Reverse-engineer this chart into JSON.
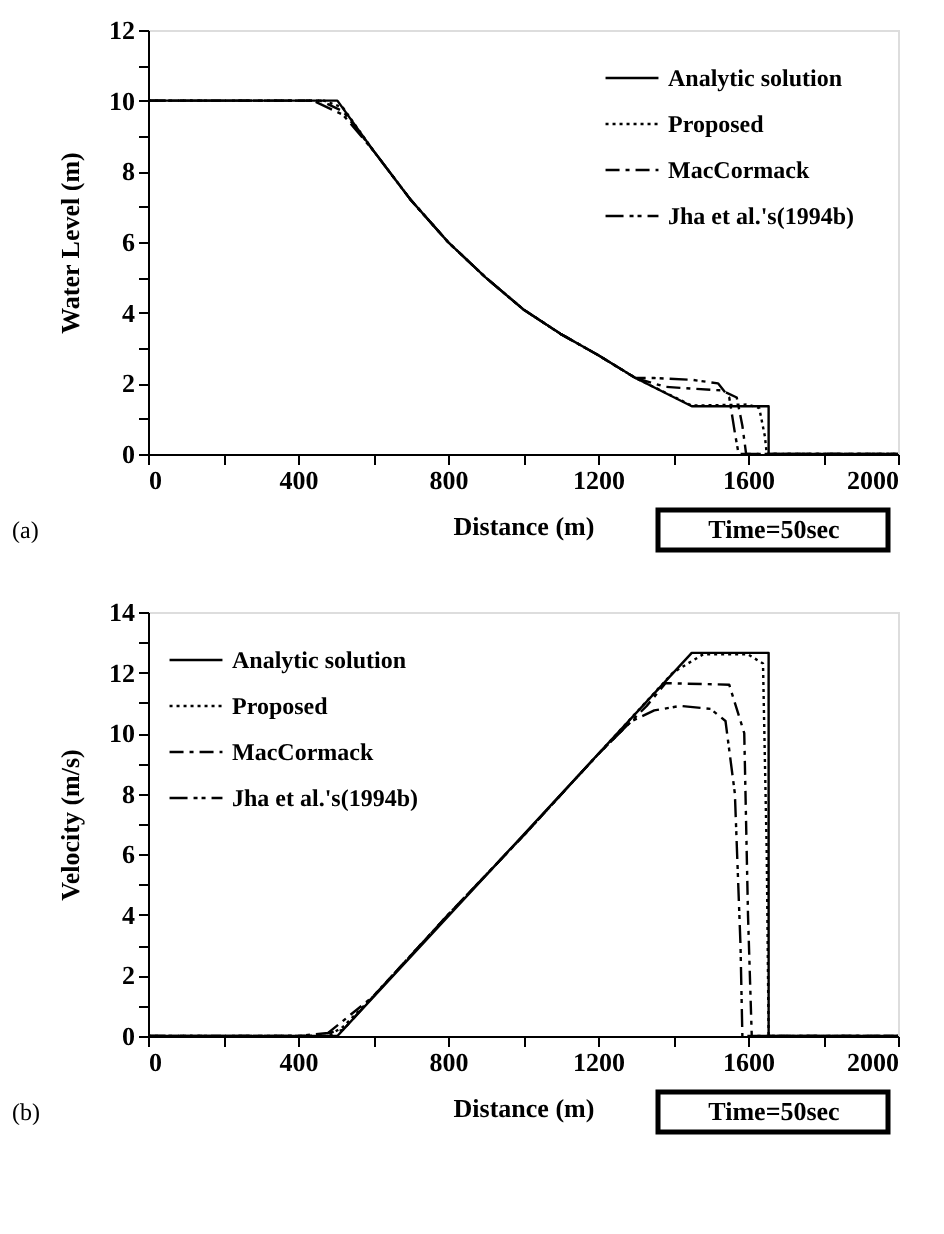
{
  "chart_data": [
    {
      "type": "line",
      "xlabel": "Distance  (m)",
      "ylabel": "Water Level (m)",
      "annotations": [
        "(a)",
        "Time=50sec"
      ],
      "xlim": [
        0,
        2000
      ],
      "ylim": [
        0,
        12
      ],
      "xticks": [
        0,
        {
          "value": 200,
          "label": null
        },
        400,
        {
          "value": 600,
          "label": null
        },
        800,
        {
          "value": 1000,
          "label": null
        },
        1200,
        {
          "value": 1400,
          "label": null
        },
        1600,
        {
          "value": 1800,
          "label": null
        },
        2000
      ],
      "yticks": [
        0,
        {
          "value": 1,
          "label": null
        },
        2,
        {
          "value": 3,
          "label": null
        },
        4,
        {
          "value": 5,
          "label": null
        },
        6,
        {
          "value": 7,
          "label": null
        },
        8,
        {
          "value": 9,
          "label": null
        },
        10,
        {
          "value": 11,
          "label": null
        },
        12
      ],
      "grid": false,
      "legend": "top right",
      "marker": "none",
      "series": [
        {
          "name": "Analytic    solution",
          "color": "#000000",
          "line_style": "solid",
          "x": [
            0,
            505,
            600,
            700,
            800,
            900,
            1000,
            1100,
            1200,
            1300,
            1450,
            1655,
            1655,
            2000
          ],
          "values": [
            10,
            10,
            8.6,
            7.2,
            6.0,
            5.0,
            4.1,
            3.4,
            2.8,
            2.15,
            1.35,
            1.35,
            0,
            0
          ]
        },
        {
          "name": "Proposed",
          "color": "#000000",
          "line_style": "dotted",
          "x": [
            0,
            470,
            520,
            600,
            700,
            800,
            900,
            1000,
            1100,
            1200,
            1300,
            1450,
            1600,
            1630,
            1645,
            1650,
            2000
          ],
          "values": [
            10,
            10,
            9.8,
            8.6,
            7.2,
            6.0,
            5.0,
            4.1,
            3.4,
            2.8,
            2.15,
            1.37,
            1.4,
            1.3,
            0.5,
            0,
            0
          ]
        },
        {
          "name": "MacCormack",
          "color": "#000000",
          "line_style": "dashdot",
          "x": [
            0,
            460,
            520,
            600,
            700,
            800,
            900,
            1000,
            1100,
            1200,
            1300,
            1380,
            1450,
            1530,
            1570,
            1585,
            1595,
            2000
          ],
          "values": [
            10,
            10,
            9.7,
            8.6,
            7.2,
            6.0,
            5.0,
            4.1,
            3.4,
            2.8,
            2.15,
            1.9,
            1.85,
            1.8,
            1.6,
            0.8,
            0,
            0
          ]
        },
        {
          "name": "Jha   et   al.'s(1994b)",
          "color": "#000000",
          "line_style": "dashdotdot",
          "x": [
            0,
            440,
            520,
            600,
            700,
            800,
            900,
            1000,
            1100,
            1200,
            1300,
            1350,
            1450,
            1520,
            1550,
            1565,
            1575,
            2000
          ],
          "values": [
            10,
            10,
            9.6,
            8.6,
            7.2,
            6.0,
            5.0,
            4.1,
            3.4,
            2.8,
            2.15,
            2.15,
            2.1,
            2.0,
            1.6,
            0.6,
            0,
            0
          ]
        }
      ]
    },
    {
      "type": "line",
      "xlabel": "Distance  (m)",
      "ylabel": "Velocity  (m/s)",
      "annotations": [
        "(b)",
        "Time=50sec"
      ],
      "xlim": [
        0,
        2000
      ],
      "ylim": [
        0,
        14
      ],
      "xticks": [
        0,
        {
          "value": 200,
          "label": null
        },
        400,
        {
          "value": 600,
          "label": null
        },
        800,
        {
          "value": 1000,
          "label": null
        },
        1200,
        {
          "value": 1400,
          "label": null
        },
        1600,
        {
          "value": 1800,
          "label": null
        },
        2000
      ],
      "yticks": [
        0,
        {
          "value": 1,
          "label": null
        },
        2,
        {
          "value": 3,
          "label": null
        },
        4,
        {
          "value": 5,
          "label": null
        },
        6,
        {
          "value": 7,
          "label": null
        },
        8,
        {
          "value": 9,
          "label": null
        },
        10,
        {
          "value": 11,
          "label": null
        },
        12,
        {
          "value": 13,
          "label": null
        },
        14
      ],
      "grid": false,
      "legend": "top left",
      "marker": "none",
      "series": [
        {
          "name": "Analytic    solution",
          "color": "#000000",
          "line_style": "solid",
          "x": [
            0,
            505,
            1450,
            1655,
            1655,
            2000
          ],
          "values": [
            0,
            0,
            12.65,
            12.65,
            0,
            0
          ]
        },
        {
          "name": "Proposed",
          "color": "#000000",
          "line_style": "dotted",
          "x": [
            0,
            480,
            520,
            600,
            800,
            1000,
            1200,
            1400,
            1480,
            1600,
            1640,
            1650,
            1655,
            2000
          ],
          "values": [
            0,
            0,
            0.3,
            1.3,
            4.0,
            6.6,
            9.3,
            12.0,
            12.6,
            12.6,
            12.3,
            6,
            0,
            0
          ]
        },
        {
          "name": "MacCormack",
          "color": "#000000",
          "line_style": "dashdot",
          "x": [
            0,
            470,
            510,
            600,
            800,
            1000,
            1200,
            1330,
            1380,
            1550,
            1590,
            1600,
            1610,
            2000
          ],
          "values": [
            0,
            0,
            0.4,
            1.3,
            4.0,
            6.6,
            9.3,
            10.9,
            11.65,
            11.6,
            10,
            4,
            0,
            0
          ]
        },
        {
          "name": "Jha   et   al.'s(1994b)",
          "color": "#000000",
          "line_style": "dashdotdot",
          "x": [
            0,
            400,
            480,
            520,
            600,
            800,
            1000,
            1200,
            1290,
            1350,
            1420,
            1500,
            1540,
            1565,
            1580,
            1585,
            2000
          ],
          "values": [
            0,
            0,
            0.1,
            0.2,
            1.3,
            4.0,
            6.6,
            9.3,
            10.4,
            10.75,
            10.9,
            10.8,
            10.4,
            8,
            3,
            0,
            0
          ]
        }
      ]
    }
  ]
}
